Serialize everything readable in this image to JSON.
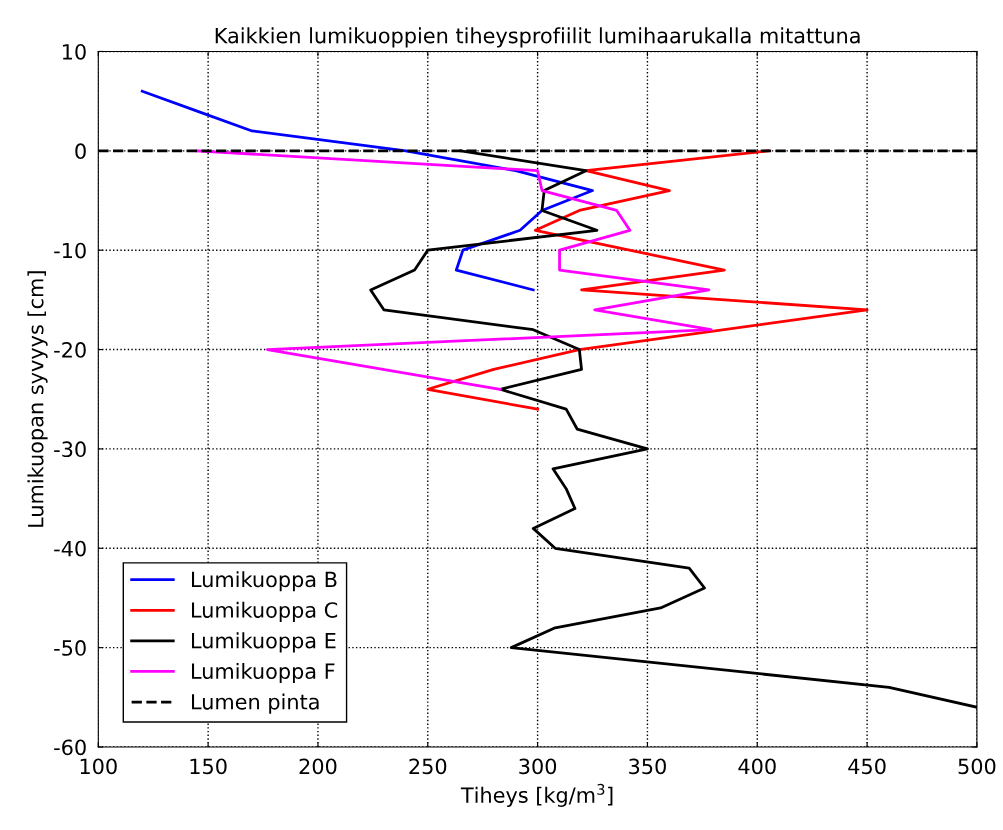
{
  "chart_data": {
    "type": "line",
    "title": "Kaikkien lumikuoppien tiheysprofiilit lumihaarukalla mitattuna",
    "xlabel": "Tiheys [kg/m$^{3}$]",
    "ylabel": "Lumikuopan syvyys [cm]",
    "xlim": [
      100,
      500
    ],
    "ylim": [
      -60,
      10
    ],
    "xticks": [
      100,
      150,
      200,
      250,
      300,
      350,
      400,
      450,
      500
    ],
    "yticks": [
      -60,
      -50,
      -40,
      -30,
      -20,
      -10,
      0,
      10
    ],
    "grid": true,
    "legend": "bottom left",
    "marker": "none",
    "line_style": "solid",
    "series": [
      {
        "name": "Lumikuoppa B",
        "color": "#0000ff",
        "x": [
          120,
          145,
          170,
          240,
          290,
          325,
          302,
          292,
          266,
          263,
          298
        ],
        "values": [
          6,
          4,
          2,
          0,
          -2,
          -4,
          -6,
          -8,
          -10,
          -12,
          -14
        ]
      },
      {
        "name": "Lumikuoppa C",
        "color": "#ff0000",
        "x": [
          405,
          322,
          360,
          319,
          299,
          385,
          320,
          450,
          319,
          280,
          250,
          300
        ],
        "values": [
          0,
          -2,
          -4,
          -6,
          -8,
          -12,
          -14,
          -16,
          -20,
          -22,
          -24,
          -26
        ]
      },
      {
        "name": "Lumikuoppa E",
        "color": "#000000",
        "x": [
          265,
          322,
          303,
          302,
          327,
          250,
          244,
          224,
          230,
          298,
          319,
          320,
          283,
          313,
          318,
          350,
          307,
          313,
          317,
          298,
          308,
          369,
          376,
          356,
          308,
          288,
          460,
          500
        ],
        "values": [
          0,
          -2,
          -4,
          -6,
          -8,
          -10,
          -12,
          -14,
          -16,
          -18,
          -20,
          -22,
          -24,
          -26,
          -28,
          -30,
          -32,
          -34,
          -36,
          -38,
          -40,
          -42,
          -44,
          -46,
          -48,
          -50,
          -54,
          -56
        ]
      },
      {
        "name": "Lumikuoppa F",
        "color": "#ff00ff",
        "x": [
          145,
          300,
          302,
          336,
          342,
          310,
          310,
          378,
          326,
          379,
          177,
          283
        ],
        "values": [
          0,
          -2,
          -4,
          -6,
          -8,
          -10,
          -12,
          -14,
          -16,
          -18,
          -20,
          -24
        ]
      }
    ],
    "ref_lines": [
      {
        "axis": "y",
        "value": 0,
        "label": "Lumen pinta",
        "color": "#000000",
        "line_style": "dashed"
      }
    ]
  }
}
